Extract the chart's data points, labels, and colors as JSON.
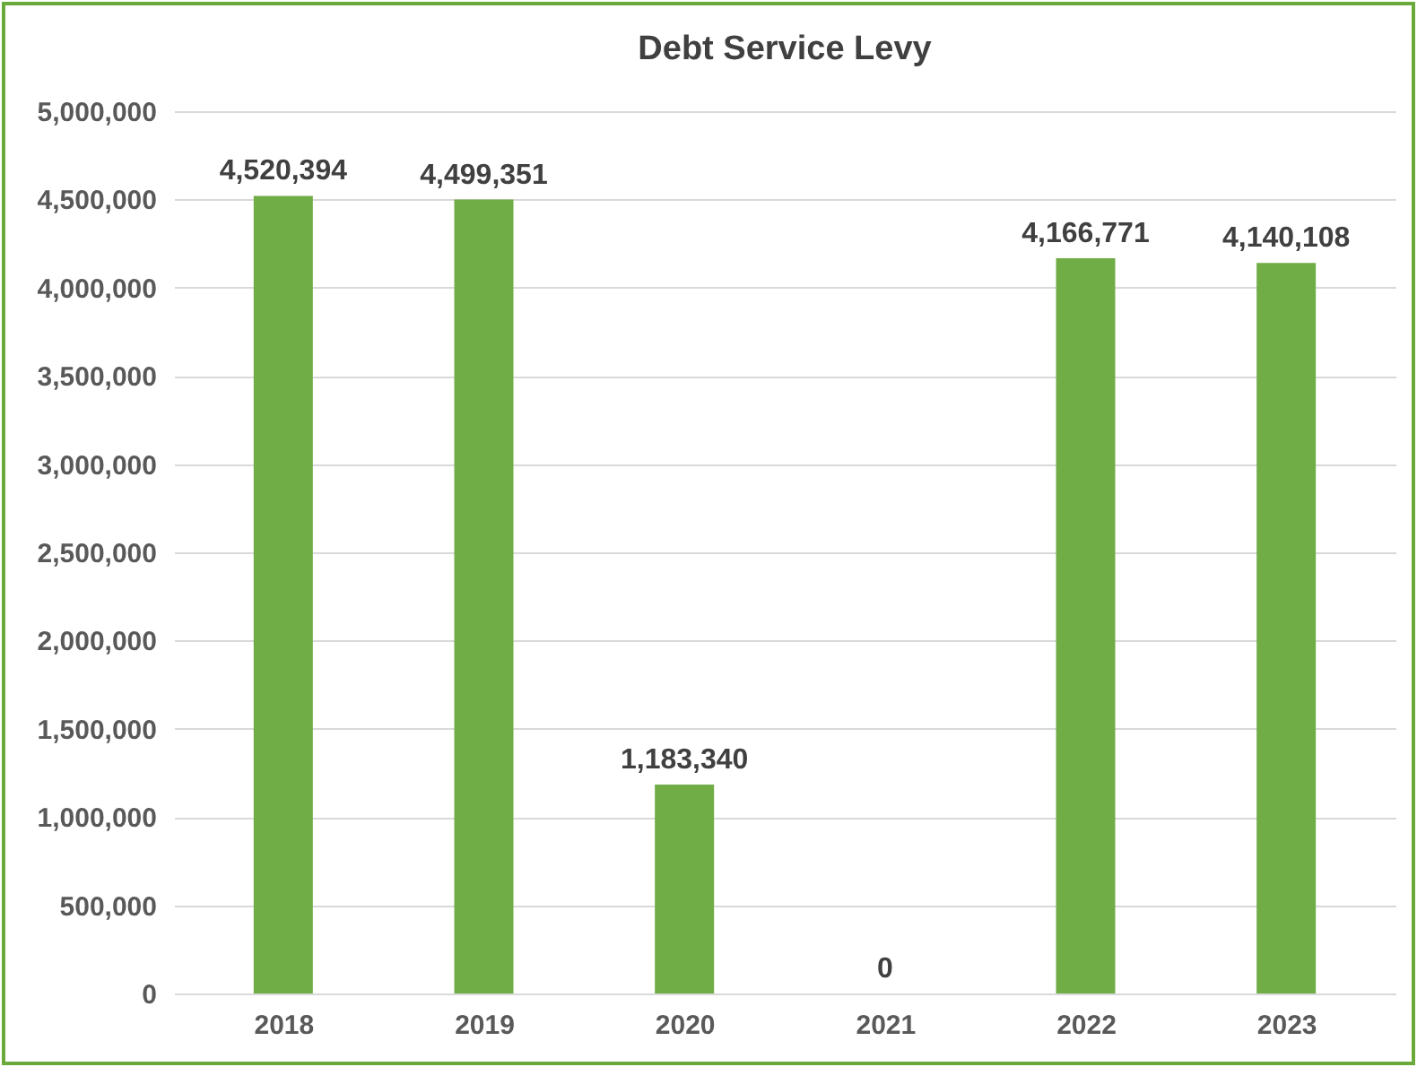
{
  "chart_data": {
    "type": "bar",
    "title": "Debt Service Levy",
    "categories": [
      "2018",
      "2019",
      "2020",
      "2021",
      "2022",
      "2023"
    ],
    "values": [
      4520394,
      4499351,
      1183340,
      0,
      4166771,
      4140108
    ],
    "value_labels": [
      "4,520,394",
      "4,499,351",
      "1,183,340",
      "0",
      "4,166,771",
      "4,140,108"
    ],
    "color": "#70ad47",
    "ylim": [
      0,
      5000000
    ],
    "yticks": [
      {
        "value": 0,
        "label": "0"
      },
      {
        "value": 500000,
        "label": "500,000"
      },
      {
        "value": 1000000,
        "label": "1,000,000"
      },
      {
        "value": 1500000,
        "label": "1,500,000"
      },
      {
        "value": 2000000,
        "label": "2,000,000"
      },
      {
        "value": 2500000,
        "label": "2,500,000"
      },
      {
        "value": 3000000,
        "label": "3,000,000"
      },
      {
        "value": 3500000,
        "label": "3,500,000"
      },
      {
        "value": 4000000,
        "label": "4,000,000"
      },
      {
        "value": 4500000,
        "label": "4,500,000"
      },
      {
        "value": 5000000,
        "label": "5,000,000"
      }
    ],
    "grid": "y"
  }
}
